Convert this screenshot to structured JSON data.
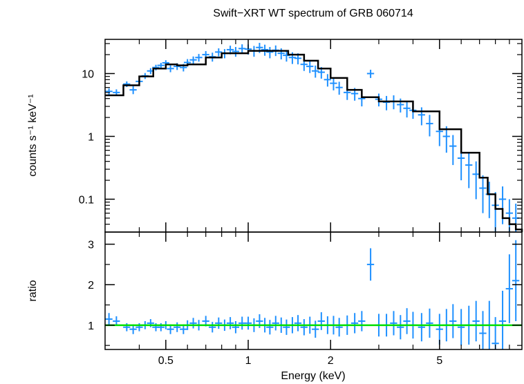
{
  "chart_data": {
    "type": "scatter",
    "title": "Swift−XRT WT spectrum of GRB 060714",
    "xlabel": "Energy (keV)",
    "x_scale": "log",
    "xlim": [
      0.3,
      10
    ],
    "x_ticks": [
      {
        "value": 0.5,
        "label": "0.5"
      },
      {
        "value": 1,
        "label": "1"
      },
      {
        "value": 2,
        "label": "2"
      },
      {
        "value": 5,
        "label": "5"
      }
    ],
    "panels": [
      {
        "name": "spectrum",
        "ylabel": "counts s⁻¹ keV⁻¹",
        "y_scale": "log",
        "ylim": [
          0.03,
          35
        ],
        "y_ticks": [
          {
            "value": 0.1,
            "label": "0.1"
          },
          {
            "value": 1,
            "label": "1"
          },
          {
            "value": 10,
            "label": "10"
          }
        ],
        "model_x": [
          0.3,
          0.35,
          0.4,
          0.45,
          0.5,
          0.55,
          0.6,
          0.7,
          0.8,
          1.0,
          1.2,
          1.4,
          1.6,
          1.8,
          2.0,
          2.3,
          2.6,
          3.0,
          4.0,
          5.0,
          6.0,
          7.0,
          7.5,
          8.0,
          8.5,
          9.0,
          9.5,
          10.0
        ],
        "model_y": [
          4.5,
          6.5,
          9.0,
          12.0,
          14.0,
          13.5,
          14.0,
          18.0,
          21.0,
          23.0,
          23.0,
          20.0,
          16.0,
          12.0,
          8.5,
          5.5,
          4.2,
          3.6,
          2.5,
          1.3,
          0.55,
          0.22,
          0.12,
          0.07,
          0.05,
          0.04,
          0.033,
          0.03
        ],
        "data_x": [
          0.31,
          0.33,
          0.36,
          0.38,
          0.4,
          0.42,
          0.44,
          0.46,
          0.48,
          0.5,
          0.52,
          0.55,
          0.58,
          0.6,
          0.63,
          0.66,
          0.7,
          0.74,
          0.78,
          0.82,
          0.86,
          0.9,
          0.95,
          1.0,
          1.05,
          1.1,
          1.15,
          1.2,
          1.26,
          1.32,
          1.38,
          1.45,
          1.52,
          1.6,
          1.68,
          1.76,
          1.85,
          1.95,
          2.05,
          2.15,
          2.3,
          2.45,
          2.6,
          2.8,
          3.0,
          3.2,
          3.4,
          3.6,
          3.8,
          4.0,
          4.3,
          4.6,
          5.0,
          5.3,
          5.6,
          6.0,
          6.4,
          6.8,
          7.2,
          7.6,
          8.0,
          8.5,
          9.0,
          9.5
        ],
        "data_y": [
          5.2,
          5.0,
          6.8,
          5.5,
          7.5,
          9.2,
          11.0,
          12.5,
          13.5,
          14.8,
          12.0,
          13.0,
          12.5,
          15.0,
          16.5,
          18.0,
          20.0,
          18.5,
          22.0,
          21.0,
          24.0,
          22.5,
          25.0,
          24.5,
          23.0,
          26.0,
          24.0,
          22.0,
          23.5,
          21.0,
          19.5,
          18.0,
          17.5,
          14.0,
          13.0,
          11.0,
          10.5,
          8.0,
          7.0,
          6.0,
          5.0,
          4.8,
          4.0,
          10.0,
          3.9,
          3.5,
          3.6,
          3.2,
          2.8,
          2.6,
          2.2,
          1.6,
          1.2,
          1.0,
          0.7,
          0.45,
          0.35,
          0.25,
          0.15,
          0.12,
          0.08,
          0.1,
          0.06,
          0.05
        ],
        "data_err": [
          0.6,
          0.6,
          0.7,
          0.8,
          0.9,
          1.0,
          1.2,
          1.3,
          1.3,
          1.5,
          1.5,
          1.6,
          1.7,
          2.0,
          2.2,
          2.5,
          2.8,
          3.0,
          3.2,
          3.5,
          3.8,
          4.0,
          4.2,
          4.5,
          4.5,
          4.8,
          4.8,
          4.5,
          4.5,
          4.2,
          4.0,
          3.8,
          3.5,
          3.0,
          2.8,
          2.4,
          2.2,
          1.8,
          1.6,
          1.4,
          1.2,
          1.1,
          1.0,
          1.5,
          0.9,
          0.9,
          0.9,
          0.8,
          0.8,
          0.7,
          0.7,
          0.6,
          0.5,
          0.45,
          0.35,
          0.25,
          0.2,
          0.15,
          0.09,
          0.07,
          0.05,
          0.06,
          0.04,
          0.035
        ]
      },
      {
        "name": "ratio",
        "ylabel": "ratio",
        "y_scale": "linear",
        "ylim": [
          0.4,
          3.3
        ],
        "y_ticks": [
          {
            "value": 1,
            "label": "1"
          },
          {
            "value": 2,
            "label": "2"
          },
          {
            "value": 3,
            "label": "3"
          }
        ],
        "reference_line": 1.0,
        "data_x": [
          0.31,
          0.33,
          0.36,
          0.38,
          0.4,
          0.42,
          0.44,
          0.46,
          0.48,
          0.5,
          0.52,
          0.55,
          0.58,
          0.6,
          0.63,
          0.66,
          0.7,
          0.74,
          0.78,
          0.82,
          0.86,
          0.9,
          0.95,
          1.0,
          1.05,
          1.1,
          1.15,
          1.2,
          1.26,
          1.32,
          1.38,
          1.45,
          1.52,
          1.6,
          1.68,
          1.76,
          1.85,
          1.95,
          2.05,
          2.15,
          2.3,
          2.45,
          2.6,
          2.8,
          3.0,
          3.2,
          3.4,
          3.6,
          3.8,
          4.0,
          4.3,
          4.6,
          5.0,
          5.3,
          5.6,
          6.0,
          6.4,
          6.8,
          7.2,
          7.6,
          8.0,
          8.5,
          9.0,
          9.5
        ],
        "data_y": [
          1.15,
          1.1,
          0.95,
          0.9,
          0.95,
          1.0,
          1.05,
          0.95,
          0.95,
          1.0,
          0.9,
          0.95,
          0.9,
          1.0,
          1.05,
          1.0,
          1.1,
          0.95,
          1.05,
          1.0,
          1.05,
          0.95,
          1.05,
          1.05,
          1.0,
          1.1,
          1.0,
          0.95,
          1.05,
          1.0,
          0.95,
          1.0,
          1.05,
          0.95,
          1.0,
          0.9,
          1.1,
          1.0,
          1.0,
          0.95,
          1.0,
          1.05,
          1.1,
          2.5,
          1.0,
          1.0,
          1.05,
          0.95,
          1.1,
          1.0,
          0.95,
          1.05,
          0.9,
          1.0,
          1.1,
          0.95,
          1.0,
          1.1,
          0.8,
          1.0,
          0.55,
          1.1,
          1.9,
          2.1
        ],
        "data_err": [
          0.15,
          0.12,
          0.1,
          0.12,
          0.1,
          0.1,
          0.1,
          0.1,
          0.1,
          0.1,
          0.12,
          0.12,
          0.12,
          0.12,
          0.13,
          0.13,
          0.13,
          0.13,
          0.14,
          0.14,
          0.15,
          0.15,
          0.16,
          0.16,
          0.17,
          0.17,
          0.18,
          0.18,
          0.18,
          0.19,
          0.19,
          0.2,
          0.2,
          0.2,
          0.21,
          0.21,
          0.22,
          0.22,
          0.23,
          0.23,
          0.24,
          0.25,
          0.25,
          0.4,
          0.28,
          0.28,
          0.3,
          0.3,
          0.32,
          0.33,
          0.35,
          0.36,
          0.38,
          0.4,
          0.42,
          0.45,
          0.48,
          0.5,
          0.55,
          0.6,
          0.65,
          0.75,
          0.85,
          1.0
        ]
      }
    ],
    "colors": {
      "data": "#1e90ff",
      "model": "#000000",
      "reference_line": "#00e000"
    }
  }
}
